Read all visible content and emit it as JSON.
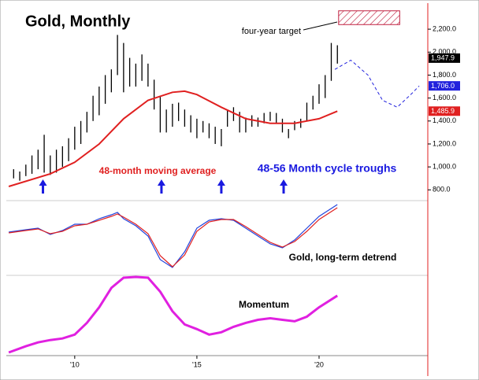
{
  "chart_data": [
    {
      "type": "ohlc",
      "title": "Gold, Monthly",
      "xlim": [
        2007.2,
        2024.45
      ],
      "ylim": [
        720,
        2420
      ],
      "yticks": [
        {
          "value": 800,
          "label": "800.0"
        },
        {
          "value": 1000,
          "label": "1,000.0"
        },
        {
          "value": 1200,
          "label": "1,200.0"
        },
        {
          "value": 1400,
          "label": "1,400.0"
        },
        {
          "value": 1600,
          "label": "1,600.0"
        },
        {
          "value": 1800,
          "label": "1,800.0"
        },
        {
          "value": 2000,
          "label": "2,000.0"
        },
        {
          "value": 2200,
          "label": "2,200.0"
        }
      ],
      "x": [
        2007.5,
        2007.75,
        2008.0,
        2008.25,
        2008.5,
        2008.75,
        2009.0,
        2009.25,
        2009.5,
        2009.75,
        2010.0,
        2010.25,
        2010.5,
        2010.75,
        2011.0,
        2011.25,
        2011.5,
        2011.75,
        2012.0,
        2012.25,
        2012.5,
        2012.75,
        2013.0,
        2013.25,
        2013.5,
        2013.75,
        2014.0,
        2014.25,
        2014.5,
        2014.75,
        2015.0,
        2015.25,
        2015.5,
        2015.75,
        2016.0,
        2016.25,
        2016.5,
        2016.75,
        2017.0,
        2017.25,
        2017.5,
        2017.75,
        2018.0,
        2018.25,
        2018.5,
        2018.75,
        2019.0,
        2019.25,
        2019.5,
        2019.75,
        2020.0,
        2020.25,
        2020.5,
        2020.75
      ],
      "low": [
        900,
        880,
        920,
        940,
        980,
        950,
        930,
        950,
        1000,
        1050,
        1150,
        1200,
        1300,
        1400,
        1450,
        1550,
        1650,
        1800,
        1650,
        1700,
        1700,
        1750,
        1700,
        1500,
        1300,
        1300,
        1350,
        1400,
        1350,
        1300,
        1250,
        1300,
        1250,
        1200,
        1180,
        1350,
        1400,
        1300,
        1300,
        1350,
        1350,
        1380,
        1400,
        1380,
        1300,
        1250,
        1320,
        1340,
        1400,
        1500,
        1550,
        1600,
        1750,
        1900
      ],
      "high": [
        980,
        960,
        1020,
        1100,
        1150,
        1280,
        1100,
        1150,
        1180,
        1250,
        1350,
        1400,
        1480,
        1620,
        1700,
        1800,
        1850,
        2150,
        2080,
        1950,
        1900,
        1980,
        1900,
        1760,
        1620,
        1500,
        1550,
        1560,
        1500,
        1450,
        1420,
        1400,
        1380,
        1350,
        1330,
        1500,
        1520,
        1480,
        1430,
        1450,
        1430,
        1470,
        1480,
        1470,
        1420,
        1330,
        1400,
        1420,
        1560,
        1620,
        1720,
        1800,
        2080,
        2060
      ],
      "color": "#000000",
      "overlays": [
        {
          "color": "#e02020",
          "dash": false,
          "x": [
            2007.3,
            2009,
            2010,
            2011,
            2012,
            2013,
            2014,
            2014.5,
            2015,
            2016,
            2017,
            2018,
            2019,
            2020,
            2020.75
          ],
          "values": [
            830,
            940,
            1040,
            1200,
            1420,
            1580,
            1650,
            1660,
            1630,
            1520,
            1420,
            1380,
            1380,
            1420,
            1485.9
          ]
        },
        {
          "color": "#2222dd",
          "dash": true,
          "x": [
            2020.65,
            2021.3,
            2022.0,
            2022.6,
            2023.2,
            2023.8,
            2024.1
          ],
          "values": [
            1850,
            1930,
            1800,
            1580,
            1520,
            1640,
            1706
          ]
        }
      ],
      "markers": [
        {
          "value": 1947.9,
          "label": "1,947.9",
          "color": "#000000"
        },
        {
          "value": 1706,
          "label": "1,706.0",
          "color": "#2222dd"
        },
        {
          "value": 1485.9,
          "label": "1,485.9",
          "color": "#e02020"
        }
      ],
      "target": {
        "label": "four-year target",
        "x": [
          2020.8,
          2023.3
        ],
        "low": 2240,
        "high": 2360,
        "color": "#c02040"
      },
      "troughs": {
        "label": "48-56 Month cycle troughs",
        "color": "#1a1ae0",
        "x": [
          2008.7,
          2013.55,
          2016.0,
          2018.55
        ]
      },
      "annotations": [
        {
          "text": "48-month moving average",
          "color": "#e02020"
        }
      ]
    },
    {
      "type": "line",
      "title": "Gold, long-term detrend",
      "ylim": [
        -94,
        94
      ],
      "x": [
        2007.3,
        2008,
        2008.5,
        2009,
        2009.5,
        2010,
        2010.5,
        2011,
        2011.5,
        2011.75,
        2012,
        2012.5,
        2013,
        2013.5,
        2014,
        2014.5,
        2015,
        2015.5,
        2016,
        2016.5,
        2017,
        2017.5,
        2018,
        2018.5,
        2019,
        2019.5,
        2020,
        2020.75
      ],
      "series": [
        {
          "color": "#2244dd",
          "values": [
            16,
            22,
            26,
            10,
            20,
            36,
            36,
            50,
            60,
            66,
            50,
            32,
            6,
            -54,
            -74,
            -34,
            26,
            46,
            50,
            46,
            26,
            6,
            -14,
            -24,
            -4,
            26,
            56,
            86
          ]
        },
        {
          "color": "#e02020",
          "values": [
            14,
            20,
            24,
            12,
            18,
            32,
            36,
            46,
            56,
            62,
            54,
            36,
            12,
            -44,
            -72,
            -42,
            18,
            42,
            48,
            48,
            30,
            10,
            -10,
            -22,
            -8,
            18,
            48,
            78
          ]
        }
      ]
    },
    {
      "type": "line",
      "title": "Momentum",
      "ylim": [
        0,
        102
      ],
      "xticks": [
        {
          "value": 2010,
          "label": "'10"
        },
        {
          "value": 2015,
          "label": "'15"
        },
        {
          "value": 2020,
          "label": "'20"
        }
      ],
      "x": [
        2007.3,
        2008,
        2008.5,
        2009,
        2009.5,
        2010,
        2010.5,
        2011,
        2011.5,
        2012,
        2012.5,
        2013,
        2013.5,
        2014,
        2014.5,
        2015,
        2015.5,
        2016,
        2016.5,
        2017,
        2017.5,
        2018,
        2018.5,
        2019,
        2019.5,
        2020,
        2020.75
      ],
      "series": [
        {
          "color": "#e020e0",
          "values": [
            4,
            12,
            17,
            20,
            22,
            27,
            42,
            62,
            87,
            100,
            101,
            100,
            82,
            57,
            40,
            34,
            27,
            30,
            37,
            42,
            46,
            48,
            46,
            44,
            50,
            62,
            77
          ]
        }
      ]
    }
  ]
}
